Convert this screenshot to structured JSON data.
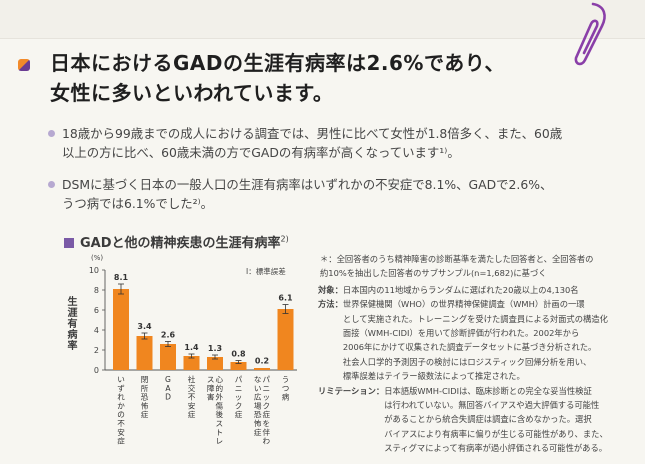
{
  "headline": {
    "line1": "日本におけるGADの生涯有病率は2.6%であり、",
    "line2": "女性に多いといわれています。"
  },
  "bullets": [
    {
      "text": "18歳から99歳までの成人における調査では、男性に比べて女性が1.8倍多く、また、60歳\n以上の方に比べ、60歳未満の方でGADの有病率が高くなっています¹⁾。"
    },
    {
      "text": "DSMに基づく日本の一般人口の生涯有病率はいずれかの不安症で8.1%、GADで2.6%、\nうつ病では6.1%でした²⁾。"
    }
  ],
  "section": {
    "title": "GADと他の精神疾患の生涯有病率",
    "ref": "2)"
  },
  "chart_data": {
    "type": "bar",
    "ylabel": "生涯有病率",
    "yunit": "(%)",
    "ylim": [
      0,
      10
    ],
    "yticks": [
      "0",
      "2",
      "4",
      "6",
      "8",
      "10"
    ],
    "legend": "I：標準誤差",
    "categories": [
      "いずれかの不安症",
      "閉所恐怖症",
      "GAD",
      "社交不安症",
      "心的外傷後ストレス障害",
      "パニック症",
      "パニック症を伴わない広場恐怖症",
      "うつ病"
    ],
    "values": [
      8.1,
      3.4,
      2.6,
      1.4,
      1.3,
      0.8,
      0.2,
      6.1
    ],
    "value_labels": [
      "8.1",
      "3.4",
      "2.6",
      "1.4",
      "1.3",
      "0.8",
      "0.2",
      "6.1"
    ],
    "errors": [
      0.5,
      0.3,
      0.25,
      0.2,
      0.2,
      0.15,
      0.05,
      0.45
    ],
    "bar_color": "#f0861f"
  },
  "notes": {
    "star": "＊：全回答者のうち精神障害の診断基準を満たした回答者と、全回答者の\n約10%を抽出した回答者のサブサンプル(n=1,682)に基づく",
    "target_label": "対象：",
    "target_text": "日本国内の11地域からランダムに選ばれた20歳以上の4,130名",
    "method_label": "方法：",
    "method_text": "世界保健機関（WHO）の世界精神保健調査（WMH）計画の一環\nとして実施された。トレーニングを受けた調査員による対面式の構造化\n面接（WMH-CIDI）を用いて診断評価が行われた。2002年から\n2006年にかけて収集された調査データセットに基づき分析された。\n社会人口学的予測因子の検討にはロジスティック回帰分析を用い、\n標準誤差はテイラー級数法によって推定された。",
    "limit_label": "リミテーション：",
    "limit_text": "日本語版WMH-CIDIは、臨床診断との完全な妥当性検証\nは行われていない。無回答バイアスや過大評価する可能性\nがあることから統合失調症は調査に含めなかった。選択\nバイアスにより有病率に偏りが生じる可能性があり、また、\nスティグマによって有病率が過小評価される可能性がある。"
  },
  "colors": {
    "accent_orange": "#f0861f",
    "accent_purple": "#6a3c93",
    "bullet_dot": "#b7a9d1",
    "clip": "#8a3fa8"
  }
}
